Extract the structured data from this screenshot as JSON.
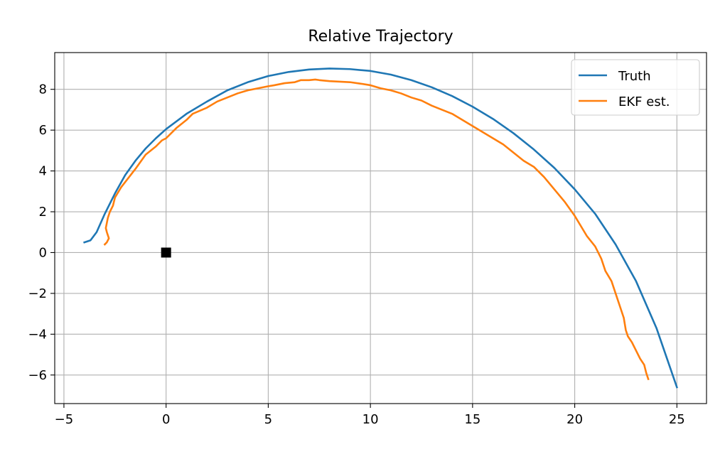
{
  "chart_data": {
    "type": "line",
    "title": "Relative Trajectory",
    "xlabel": "",
    "ylabel": "",
    "xlim": [
      -5.45,
      26.45
    ],
    "ylim": [
      -7.4,
      9.8
    ],
    "xticks": [
      -5,
      0,
      5,
      10,
      15,
      20,
      25
    ],
    "yticks": [
      -6,
      -4,
      -2,
      0,
      2,
      4,
      6,
      8
    ],
    "grid": true,
    "legend": "top-right",
    "series": [
      {
        "name": "Truth",
        "color": "#1f77b4",
        "x": [
          -4.0,
          -3.7,
          -3.4,
          -3.0,
          -2.5,
          -2.0,
          -1.5,
          -1.0,
          -0.5,
          0.0,
          1.0,
          2.0,
          3.0,
          4.0,
          5.0,
          6.0,
          7.0,
          8.0,
          9.0,
          10.0,
          11.0,
          12.0,
          13.0,
          14.0,
          15.0,
          16.0,
          17.0,
          18.0,
          19.0,
          20.0,
          21.0,
          22.0,
          23.0,
          24.0,
          25.0
        ],
        "y": [
          0.5,
          0.6,
          1.0,
          1.9,
          2.9,
          3.8,
          4.5,
          5.1,
          5.6,
          6.05,
          6.8,
          7.4,
          7.95,
          8.35,
          8.65,
          8.85,
          8.97,
          9.02,
          8.99,
          8.9,
          8.72,
          8.45,
          8.1,
          7.67,
          7.15,
          6.55,
          5.85,
          5.05,
          4.15,
          3.1,
          1.9,
          0.4,
          -1.4,
          -3.7,
          -6.6
        ]
      },
      {
        "name": "EKF est.",
        "color": "#ff7f0e",
        "x": [
          -3.0,
          -2.9,
          -2.8,
          -2.9,
          -2.95,
          -2.85,
          -2.75,
          -2.6,
          -2.5,
          -2.2,
          -1.5,
          -1.0,
          -0.5,
          -0.2,
          0.0,
          0.5,
          1.0,
          1.3,
          2.0,
          2.5,
          3.0,
          3.5,
          4.0,
          4.5,
          5.0,
          5.3,
          5.8,
          6.3,
          6.6,
          7.0,
          7.3,
          7.5,
          8.0,
          9.0,
          9.5,
          10.0,
          10.5,
          11.0,
          11.5,
          12.0,
          12.5,
          13.0,
          13.5,
          14.0,
          14.5,
          15.0,
          15.5,
          16.0,
          16.5,
          17.0,
          17.5,
          18.0,
          18.5,
          19.0,
          19.5,
          20.0,
          20.3,
          20.6,
          21.0,
          21.3,
          21.5,
          21.8,
          22.0,
          22.2,
          22.4,
          22.5,
          22.6,
          22.8,
          23.0,
          23.2,
          23.4,
          23.5,
          23.6
        ],
        "y": [
          0.4,
          0.5,
          0.7,
          1.0,
          1.2,
          1.7,
          2.0,
          2.3,
          2.7,
          3.2,
          4.1,
          4.8,
          5.2,
          5.5,
          5.6,
          6.1,
          6.5,
          6.8,
          7.1,
          7.4,
          7.6,
          7.8,
          7.95,
          8.05,
          8.15,
          8.2,
          8.3,
          8.35,
          8.45,
          8.45,
          8.48,
          8.45,
          8.4,
          8.35,
          8.28,
          8.2,
          8.05,
          7.95,
          7.8,
          7.6,
          7.45,
          7.2,
          7.0,
          6.8,
          6.5,
          6.2,
          5.9,
          5.6,
          5.3,
          4.9,
          4.5,
          4.2,
          3.7,
          3.1,
          2.5,
          1.8,
          1.3,
          0.8,
          0.3,
          -0.3,
          -0.9,
          -1.4,
          -2.0,
          -2.6,
          -3.2,
          -3.8,
          -4.1,
          -4.4,
          -4.8,
          -5.2,
          -5.5,
          -5.9,
          -6.2
        ]
      }
    ],
    "markers": [
      {
        "x": 0.0,
        "y": 0.0,
        "shape": "square",
        "color": "#000000"
      }
    ]
  }
}
